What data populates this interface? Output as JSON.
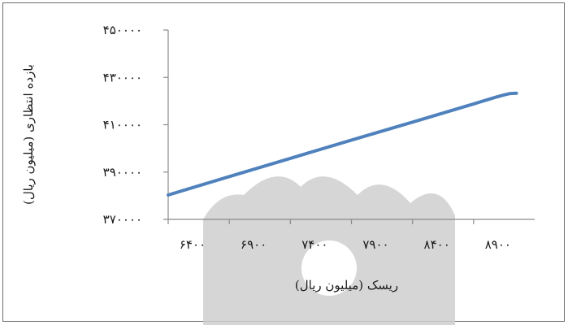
{
  "chart_data": {
    "type": "line",
    "title": "",
    "xlabel": "ریسک (میلیون ریال)",
    "ylabel": "بازده انتظاری (میلیون ریال)",
    "xlim": [
      6400,
      9400
    ],
    "ylim": [
      370000,
      450000
    ],
    "x_ticks": [
      "۶۴۰۰",
      "۶۹۰۰",
      "۷۴۰۰",
      "۷۹۰۰",
      "۸۴۰۰",
      "۸۹۰۰"
    ],
    "x_tick_values": [
      6400,
      6900,
      7400,
      7900,
      8400,
      8900
    ],
    "y_ticks": [
      "۳۷۰۰۰۰",
      "۳۹۰۰۰۰",
      "۴۱۰۰۰۰",
      "۴۳۰۰۰۰",
      "۴۵۰۰۰۰"
    ],
    "y_tick_values": [
      370000,
      390000,
      410000,
      430000,
      450000
    ],
    "grid": false,
    "legend": "none",
    "series": [
      {
        "color": "#4f81bd",
        "x": [
          6400,
          6900,
          7400,
          7900,
          8400,
          8900,
          9080,
          9150,
          9200,
          9250
        ],
        "y": [
          380300,
          388100,
          395800,
          403500,
          411100,
          418800,
          421600,
          422600,
          423200,
          423300
        ]
      }
    ]
  }
}
